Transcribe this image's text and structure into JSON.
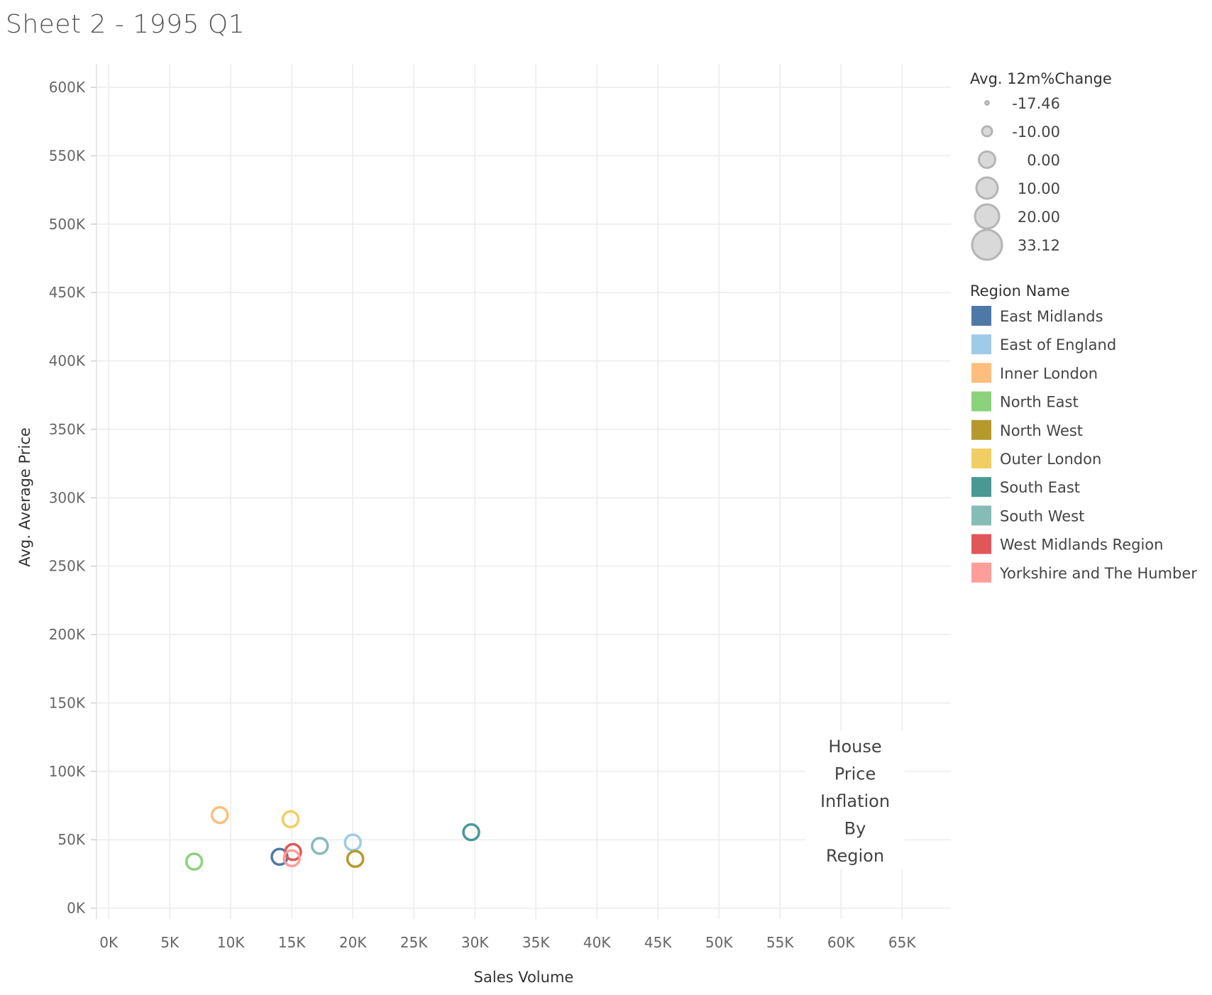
{
  "title": "Sheet 2 - 1995 Q1",
  "chart_data": {
    "type": "scatter",
    "xlabel": "Sales Volume",
    "ylabel": "Avg. Average Price",
    "xlim": [
      -1000,
      69000
    ],
    "ylim": [
      -8000,
      612000
    ],
    "x_ticks": [
      0,
      5000,
      10000,
      15000,
      20000,
      25000,
      30000,
      35000,
      40000,
      45000,
      50000,
      55000,
      60000,
      65000
    ],
    "x_tick_labels": [
      "0K",
      "5K",
      "10K",
      "15K",
      "20K",
      "25K",
      "30K",
      "35K",
      "40K",
      "45K",
      "50K",
      "55K",
      "60K",
      "65K"
    ],
    "y_ticks": [
      0,
      50000,
      100000,
      150000,
      200000,
      250000,
      300000,
      350000,
      400000,
      450000,
      500000,
      550000,
      600000
    ],
    "y_tick_labels": [
      "0K",
      "50K",
      "100K",
      "150K",
      "200K",
      "250K",
      "300K",
      "350K",
      "400K",
      "450K",
      "500K",
      "550K",
      "600K"
    ],
    "grid": true,
    "size_legend": {
      "title": "Avg. 12m%Change",
      "entries": [
        {
          "value": -17.46,
          "label": "-17.46"
        },
        {
          "value": -10.0,
          "label": "-10.00"
        },
        {
          "value": 0.0,
          "label": "0.00"
        },
        {
          "value": 10.0,
          "label": "10.00"
        },
        {
          "value": 20.0,
          "label": "20.00"
        },
        {
          "value": 33.12,
          "label": "33.12"
        }
      ]
    },
    "color_legend": {
      "title": "Region Name",
      "entries": [
        {
          "name": "East Midlands",
          "color": "#4e79a7"
        },
        {
          "name": "East of England",
          "color": "#a0cbe8"
        },
        {
          "name": "Inner London",
          "color": "#ffbe7d"
        },
        {
          "name": "North East",
          "color": "#8cd17d"
        },
        {
          "name": "North West",
          "color": "#b6992d"
        },
        {
          "name": "Outer London",
          "color": "#f1ce63"
        },
        {
          "name": "South East",
          "color": "#499894"
        },
        {
          "name": "South West",
          "color": "#86bcb6"
        },
        {
          "name": "West Midlands Region",
          "color": "#e15759"
        },
        {
          "name": "Yorkshire and The Humber",
          "color": "#ff9d9a"
        }
      ]
    },
    "points": [
      {
        "region": "East Midlands",
        "x": 14000,
        "y": 37500,
        "color": "#4e79a7"
      },
      {
        "region": "East of England",
        "x": 20000,
        "y": 48000,
        "color": "#a0cbe8"
      },
      {
        "region": "Inner London",
        "x": 9100,
        "y": 68000,
        "color": "#ffbe7d"
      },
      {
        "region": "North East",
        "x": 7000,
        "y": 34000,
        "color": "#8cd17d"
      },
      {
        "region": "North West",
        "x": 20200,
        "y": 36000,
        "color": "#b6992d"
      },
      {
        "region": "Outer London",
        "x": 14900,
        "y": 65000,
        "color": "#f1ce63"
      },
      {
        "region": "South East",
        "x": 29700,
        "y": 55500,
        "color": "#499894"
      },
      {
        "region": "South West",
        "x": 17300,
        "y": 45500,
        "color": "#86bcb6"
      },
      {
        "region": "West Midlands Region",
        "x": 15100,
        "y": 41000,
        "color": "#e15759"
      },
      {
        "region": "Yorkshire and The Humber",
        "x": 15000,
        "y": 36500,
        "color": "#ff9d9a"
      }
    ],
    "annotation": [
      "House",
      "Price",
      "Inflation",
      "By",
      "Region"
    ]
  }
}
